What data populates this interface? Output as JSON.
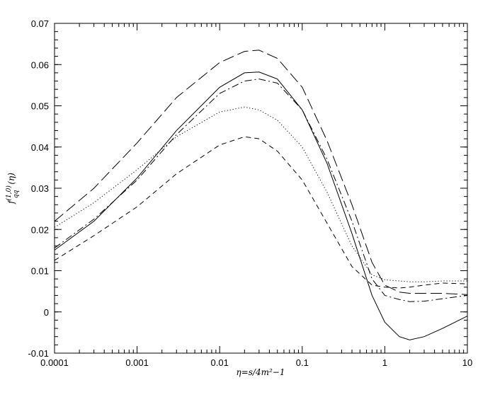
{
  "chart_data": {
    "type": "line",
    "xscale": "log",
    "xlim": [
      0.0001,
      10
    ],
    "ylim": [
      -0.01,
      0.07
    ],
    "xlabel": "η=s/4m²−1",
    "ylabel": "f(1,0)qq(η)",
    "ylabel_parts": {
      "base": "f",
      "sup": "(1,0)",
      "sub": "qq",
      "arg": "(η)"
    },
    "x_ticks": [
      0.0001,
      0.001,
      0.01,
      0.1,
      1,
      10
    ],
    "x_tick_labels": [
      "0.0001",
      "0.001",
      "0.01",
      "0.1",
      "1",
      "10"
    ],
    "y_ticks": [
      -0.01,
      0,
      0.01,
      0.02,
      0.03,
      0.04,
      0.05,
      0.06,
      0.07
    ],
    "y_tick_labels": [
      "-0.01",
      "0",
      "0.01",
      "0.02",
      "0.03",
      "0.04",
      "0.05",
      "0.06",
      "0.07"
    ],
    "grid": false,
    "series": [
      {
        "style": "longdash",
        "points": [
          [
            0.0001,
            0.022
          ],
          [
            0.0003,
            0.03
          ],
          [
            0.001,
            0.041
          ],
          [
            0.003,
            0.052
          ],
          [
            0.01,
            0.0605
          ],
          [
            0.02,
            0.0632
          ],
          [
            0.03,
            0.0635
          ],
          [
            0.05,
            0.0615
          ],
          [
            0.1,
            0.0545
          ],
          [
            0.2,
            0.0415
          ],
          [
            0.4,
            0.026
          ],
          [
            0.7,
            0.012
          ],
          [
            1,
            0.0065
          ],
          [
            1.5,
            0.0048
          ],
          [
            2,
            0.0045
          ],
          [
            3,
            0.0045
          ],
          [
            5,
            0.0045
          ],
          [
            10,
            0.0042
          ]
        ]
      },
      {
        "style": "solid",
        "points": [
          [
            0.0001,
            0.015
          ],
          [
            0.0003,
            0.022
          ],
          [
            0.001,
            0.0325
          ],
          [
            0.003,
            0.044
          ],
          [
            0.01,
            0.0545
          ],
          [
            0.02,
            0.058
          ],
          [
            0.03,
            0.0582
          ],
          [
            0.05,
            0.0565
          ],
          [
            0.1,
            0.049
          ],
          [
            0.2,
            0.036
          ],
          [
            0.4,
            0.019
          ],
          [
            0.7,
            0.004
          ],
          [
            1,
            -0.0025
          ],
          [
            1.5,
            -0.006
          ],
          [
            2,
            -0.0068
          ],
          [
            3,
            -0.006
          ],
          [
            5,
            -0.004
          ],
          [
            10,
            -0.001
          ]
        ]
      },
      {
        "style": "dashdot",
        "points": [
          [
            0.0001,
            0.0155
          ],
          [
            0.0003,
            0.0225
          ],
          [
            0.001,
            0.032
          ],
          [
            0.003,
            0.043
          ],
          [
            0.01,
            0.053
          ],
          [
            0.02,
            0.056
          ],
          [
            0.03,
            0.0565
          ],
          [
            0.05,
            0.0555
          ],
          [
            0.1,
            0.049
          ],
          [
            0.2,
            0.037
          ],
          [
            0.4,
            0.022
          ],
          [
            0.7,
            0.008
          ],
          [
            1,
            0.004
          ],
          [
            1.5,
            0.003
          ],
          [
            2,
            0.0025
          ],
          [
            3,
            0.0026
          ],
          [
            5,
            0.0032
          ],
          [
            10,
            0.004
          ]
        ]
      },
      {
        "style": "dotted",
        "points": [
          [
            0.0001,
            0.0205
          ],
          [
            0.0003,
            0.0265
          ],
          [
            0.001,
            0.0345
          ],
          [
            0.003,
            0.0425
          ],
          [
            0.01,
            0.0485
          ],
          [
            0.02,
            0.0497
          ],
          [
            0.03,
            0.049
          ],
          [
            0.05,
            0.0465
          ],
          [
            0.1,
            0.04
          ],
          [
            0.2,
            0.029
          ],
          [
            0.4,
            0.016
          ],
          [
            0.7,
            0.009
          ],
          [
            1,
            0.0078
          ],
          [
            1.5,
            0.0075
          ],
          [
            2,
            0.0073
          ],
          [
            3,
            0.0073
          ],
          [
            5,
            0.0075
          ],
          [
            10,
            0.0075
          ]
        ]
      },
      {
        "style": "shortdash",
        "points": [
          [
            0.0001,
            0.0125
          ],
          [
            0.0003,
            0.0185
          ],
          [
            0.001,
            0.0255
          ],
          [
            0.003,
            0.0335
          ],
          [
            0.01,
            0.0405
          ],
          [
            0.02,
            0.0425
          ],
          [
            0.03,
            0.042
          ],
          [
            0.05,
            0.039
          ],
          [
            0.1,
            0.032
          ],
          [
            0.2,
            0.0215
          ],
          [
            0.4,
            0.011
          ],
          [
            0.7,
            0.0065
          ],
          [
            1,
            0.006
          ],
          [
            1.5,
            0.0058
          ],
          [
            2,
            0.006
          ],
          [
            3,
            0.0065
          ],
          [
            5,
            0.007
          ],
          [
            10,
            0.0068
          ]
        ]
      }
    ]
  }
}
